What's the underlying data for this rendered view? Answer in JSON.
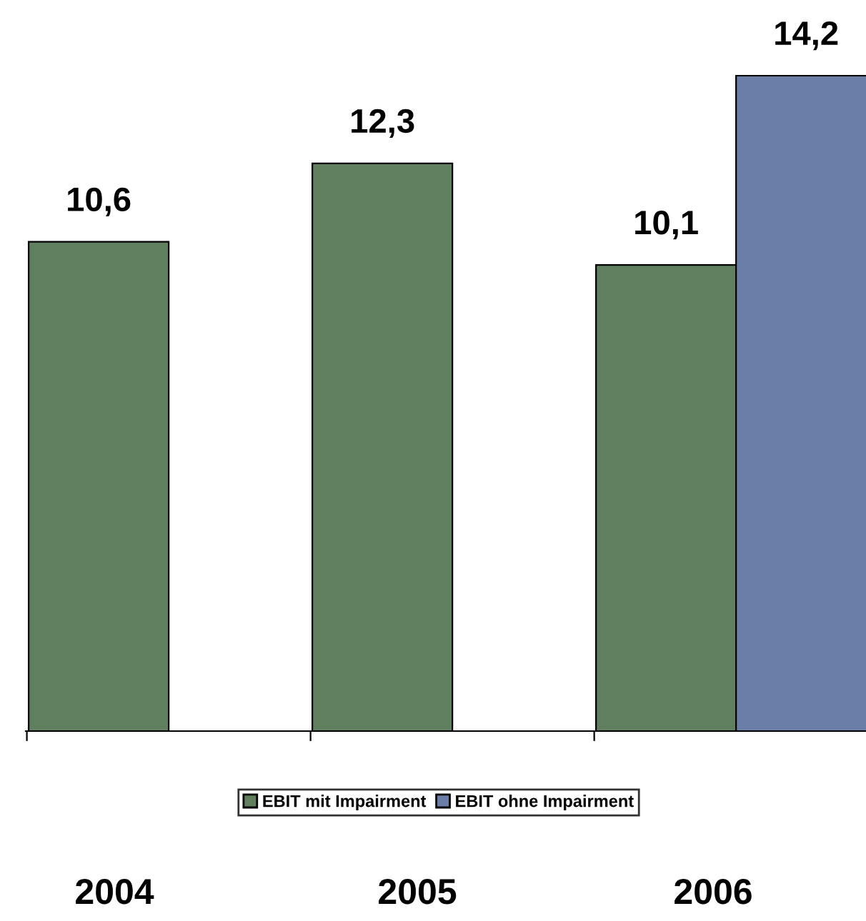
{
  "chart_data": {
    "type": "bar",
    "categories": [
      "2004",
      "2005",
      "2006"
    ],
    "series": [
      {
        "name": "EBIT mit Impairment",
        "color": "#5f7f5f",
        "values": [
          10.6,
          12.3,
          10.1
        ],
        "value_labels": [
          "10,6",
          "12,3",
          "10,1"
        ]
      },
      {
        "name": "EBIT ohne Impairment",
        "color": "#6a7ea8",
        "values": [
          null,
          null,
          14.2
        ],
        "value_labels": [
          null,
          null,
          "14,2"
        ]
      }
    ],
    "legend": "bottom",
    "grid": false
  }
}
